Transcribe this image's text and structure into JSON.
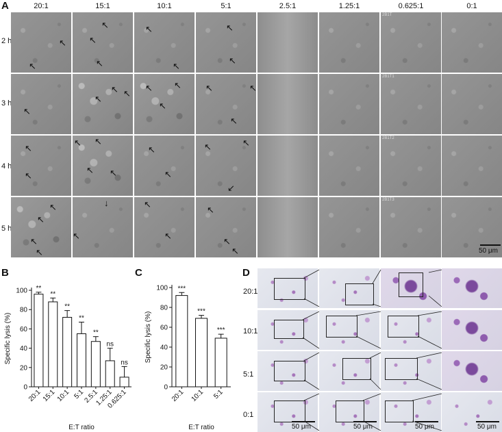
{
  "panels": {
    "A": "A",
    "B": "B",
    "C": "C",
    "D": "D"
  },
  "panel_a": {
    "ratios": [
      "20:1",
      "15:1",
      "10:1",
      "5:1",
      "2.5:1",
      "1.25:1",
      "0.625:1",
      "0:1"
    ],
    "times": [
      "2 h",
      "3 h",
      "4 h",
      "5 h"
    ],
    "scale": "50 μm",
    "image_tags": [
      "2B1T",
      "2B1T1",
      "2B1T2",
      "2B1T3"
    ]
  },
  "chart_data": [
    {
      "type": "bar",
      "categories": [
        "20:1",
        "15:1",
        "10:1",
        "5:1",
        "2.5:1",
        "1.25:1",
        "0.625:1"
      ],
      "values": [
        96,
        88,
        72,
        55,
        47,
        27,
        10
      ],
      "errors": [
        2,
        4,
        7,
        12,
        5,
        13,
        11
      ],
      "significance": [
        "**",
        "**",
        "**",
        "**",
        "**",
        "ns",
        "ns"
      ],
      "xlabel": "E:T ratio",
      "ylabel": "Specific lysis (%)",
      "ylim": [
        0,
        100
      ],
      "yticks": [
        0,
        20,
        40,
        60,
        80,
        100
      ]
    },
    {
      "type": "bar",
      "categories": [
        "20:1",
        "10:1",
        "5:1"
      ],
      "values": [
        92,
        69,
        49
      ],
      "errors": [
        3,
        3,
        4
      ],
      "significance": [
        "***",
        "***",
        "***"
      ],
      "xlabel": "E:T ratio",
      "ylabel": "Specific lysis (%)",
      "ylim": [
        0,
        100
      ],
      "yticks": [
        0,
        20,
        40,
        60,
        80,
        100
      ]
    }
  ],
  "panel_d": {
    "rows": [
      "20:1",
      "10:1",
      "5:1",
      "0:1"
    ],
    "scale": "50 μm"
  }
}
